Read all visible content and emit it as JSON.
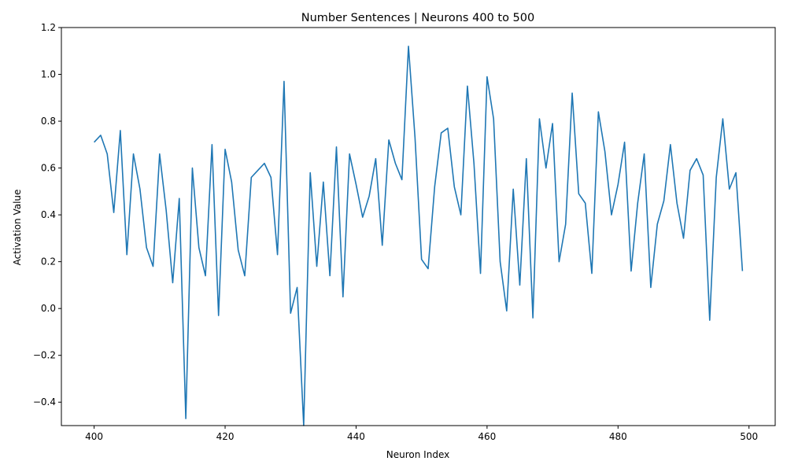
{
  "chart_data": {
    "type": "line",
    "title": "Number Sentences | Neurons 400 to 500",
    "xlabel": "Neuron Index",
    "ylabel": "Activation Value",
    "xlim": [
      395,
      504
    ],
    "ylim": [
      -0.5,
      1.2
    ],
    "xticks": [
      400,
      420,
      440,
      460,
      480,
      500
    ],
    "xtick_labels": [
      "400",
      "420",
      "440",
      "460",
      "480",
      "500"
    ],
    "yticks": [
      -0.4,
      -0.2,
      0.0,
      0.2,
      0.4,
      0.6,
      0.8,
      1.0,
      1.2
    ],
    "ytick_labels": [
      "−0.4",
      "−0.2",
      "0.0",
      "0.2",
      "0.4",
      "0.6",
      "0.8",
      "1.0",
      "1.2"
    ],
    "grid": false,
    "series": [
      {
        "color": "#1f77b4",
        "x": [
          400,
          401,
          402,
          403,
          404,
          405,
          406,
          407,
          408,
          409,
          410,
          411,
          412,
          413,
          414,
          415,
          416,
          417,
          418,
          419,
          420,
          421,
          422,
          423,
          424,
          425,
          426,
          427,
          428,
          429,
          430,
          431,
          432,
          433,
          434,
          435,
          436,
          437,
          438,
          439,
          440,
          441,
          442,
          443,
          444,
          445,
          446,
          447,
          448,
          449,
          450,
          451,
          452,
          453,
          454,
          455,
          456,
          457,
          458,
          459,
          460,
          461,
          462,
          463,
          464,
          465,
          466,
          467,
          468,
          469,
          470,
          471,
          472,
          473,
          474,
          475,
          476,
          477,
          478,
          479,
          480,
          481,
          482,
          483,
          484,
          485,
          486,
          487,
          488,
          489,
          490,
          491,
          492,
          493,
          494,
          495,
          496,
          497,
          498,
          499
        ],
        "y": [
          0.71,
          0.74,
          0.66,
          0.41,
          0.76,
          0.23,
          0.66,
          0.51,
          0.26,
          0.18,
          0.66,
          0.42,
          0.11,
          0.47,
          -0.47,
          0.6,
          0.26,
          0.14,
          0.7,
          -0.03,
          0.68,
          0.54,
          0.25,
          0.14,
          0.56,
          0.59,
          0.62,
          0.56,
          0.23,
          0.97,
          -0.02,
          0.09,
          -0.5,
          0.58,
          0.18,
          0.54,
          0.14,
          0.69,
          0.05,
          0.66,
          0.53,
          0.39,
          0.48,
          0.64,
          0.27,
          0.72,
          0.62,
          0.55,
          1.12,
          0.73,
          0.21,
          0.17,
          0.52,
          0.75,
          0.77,
          0.52,
          0.4,
          0.95,
          0.62,
          0.15,
          0.99,
          0.81,
          0.2,
          -0.01,
          0.51,
          0.1,
          0.64,
          -0.04,
          0.81,
          0.6,
          0.79,
          0.2,
          0.36,
          0.92,
          0.49,
          0.45,
          0.15,
          0.84,
          0.67,
          0.4,
          0.53,
          0.71,
          0.16,
          0.45,
          0.66,
          0.09,
          0.36,
          0.46,
          0.7,
          0.45,
          0.3,
          0.59,
          0.64,
          0.57,
          -0.05,
          0.56,
          0.81,
          0.51,
          0.58,
          0.16
        ]
      }
    ]
  }
}
